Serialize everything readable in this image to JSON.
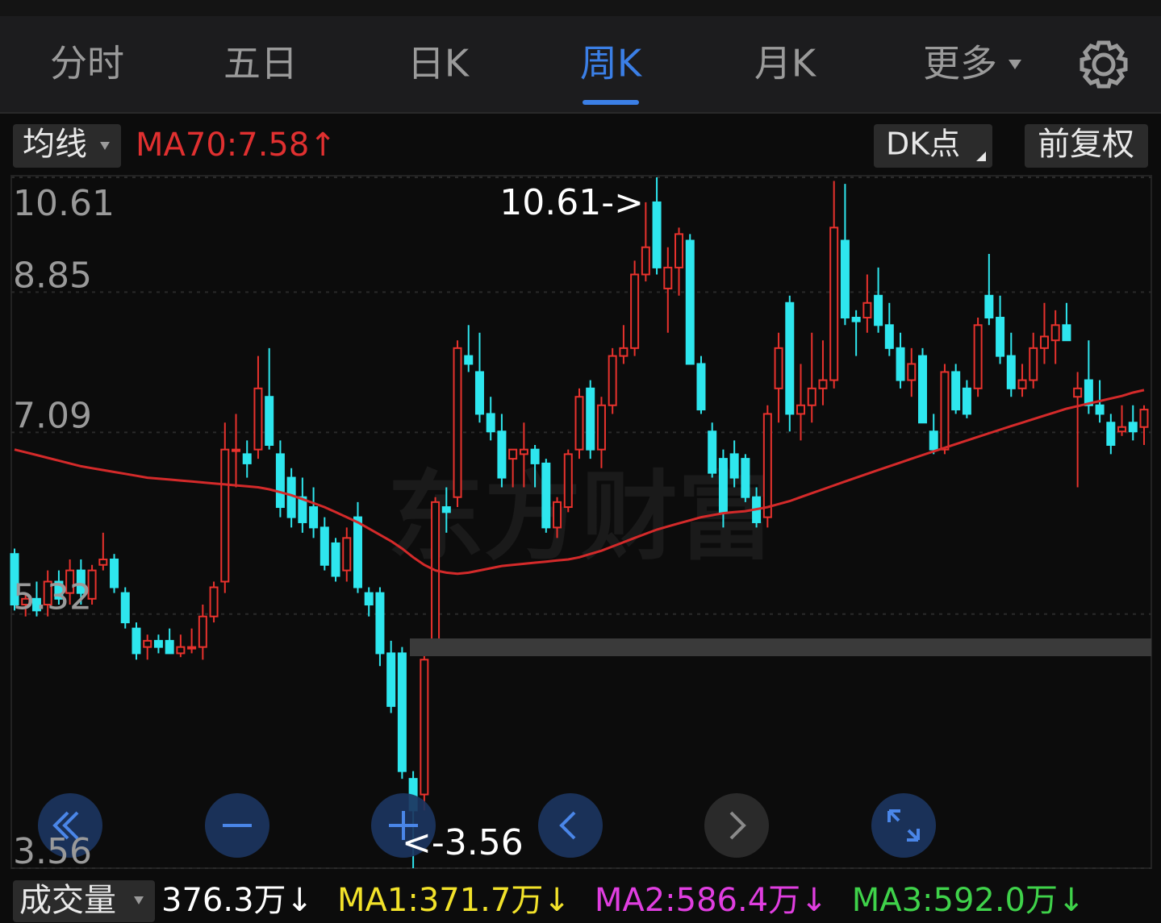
{
  "tabs": [
    "分时",
    "五日",
    "日K",
    "周K",
    "月K",
    "更多"
  ],
  "active_tab": 3,
  "toolbar": {
    "ma_button": "均线",
    "ma_text": "MA70:7.58↑",
    "dk_button": "DK点",
    "adjust_button": "前复权"
  },
  "chart_data": {
    "type": "candlestick",
    "watermark": "东方财富",
    "log_scale": true,
    "grid": true,
    "up_color": "#e8322d",
    "down_color": "#2ee6ee",
    "ylim": [
      3.56,
      10.61
    ],
    "yticks": [
      10.61,
      8.85,
      7.09,
      5.32,
      3.56
    ],
    "annotations": [
      {
        "text": "10.61->",
        "value": 10.61
      },
      {
        "text": "<-3.56",
        "value": 3.56
      }
    ],
    "candles": [
      [
        5.85,
        5.9,
        5.35,
        5.4
      ],
      [
        5.4,
        5.5,
        5.3,
        5.45
      ],
      [
        5.45,
        5.6,
        5.3,
        5.35
      ],
      [
        5.4,
        5.7,
        5.3,
        5.6
      ],
      [
        5.6,
        5.7,
        5.4,
        5.45
      ],
      [
        5.5,
        5.8,
        5.4,
        5.7
      ],
      [
        5.7,
        5.8,
        5.4,
        5.5
      ],
      [
        5.45,
        5.75,
        5.4,
        5.7
      ],
      [
        5.75,
        6.05,
        5.7,
        5.8
      ],
      [
        5.8,
        5.85,
        5.5,
        5.55
      ],
      [
        5.5,
        5.55,
        5.2,
        5.25
      ],
      [
        5.2,
        5.25,
        4.95,
        5.0
      ],
      [
        5.05,
        5.15,
        4.95,
        5.1
      ],
      [
        5.1,
        5.15,
        5.0,
        5.05
      ],
      [
        5.1,
        5.2,
        5.0,
        5.0
      ],
      [
        5.0,
        5.15,
        4.97,
        5.05
      ],
      [
        5.05,
        5.2,
        5.0,
        5.05
      ],
      [
        5.05,
        5.4,
        4.95,
        5.3
      ],
      [
        5.3,
        5.6,
        5.25,
        5.55
      ],
      [
        5.6,
        7.2,
        5.5,
        6.9
      ],
      [
        6.9,
        7.3,
        6.5,
        6.9
      ],
      [
        6.85,
        7.0,
        6.6,
        6.75
      ],
      [
        6.9,
        8.0,
        6.8,
        7.6
      ],
      [
        7.5,
        8.1,
        6.9,
        6.95
      ],
      [
        6.85,
        7.0,
        6.2,
        6.3
      ],
      [
        6.6,
        6.7,
        6.1,
        6.2
      ],
      [
        6.4,
        6.6,
        6.05,
        6.15
      ],
      [
        6.3,
        6.5,
        6.0,
        6.1
      ],
      [
        6.1,
        6.2,
        5.7,
        5.75
      ],
      [
        5.95,
        6.0,
        5.6,
        5.65
      ],
      [
        5.7,
        6.1,
        5.6,
        6.0
      ],
      [
        6.2,
        6.35,
        5.5,
        5.55
      ],
      [
        5.5,
        5.55,
        5.3,
        5.4
      ],
      [
        5.5,
        5.55,
        4.9,
        5.0
      ],
      [
        5.0,
        5.1,
        4.55,
        4.6
      ],
      [
        5.0,
        5.05,
        4.1,
        4.15
      ],
      [
        4.1,
        4.15,
        3.56,
        3.9
      ],
      [
        4.0,
        5.0,
        3.9,
        4.95
      ],
      [
        5.05,
        6.4,
        5.0,
        6.35
      ],
      [
        6.3,
        6.5,
        6.05,
        6.25
      ],
      [
        6.4,
        8.2,
        6.3,
        8.1
      ],
      [
        8.0,
        8.4,
        7.8,
        7.9
      ],
      [
        7.8,
        8.3,
        7.2,
        7.3
      ],
      [
        7.3,
        7.5,
        7.0,
        7.1
      ],
      [
        7.1,
        7.3,
        6.5,
        6.6
      ],
      [
        6.8,
        6.9,
        6.5,
        6.9
      ],
      [
        6.85,
        7.2,
        6.5,
        6.9
      ],
      [
        6.9,
        6.95,
        6.5,
        6.75
      ],
      [
        6.75,
        6.8,
        6.05,
        6.1
      ],
      [
        6.1,
        6.4,
        6.0,
        6.35
      ],
      [
        6.3,
        6.9,
        6.25,
        6.85
      ],
      [
        6.9,
        7.6,
        6.8,
        7.5
      ],
      [
        7.6,
        7.7,
        6.8,
        6.9
      ],
      [
        6.9,
        7.5,
        6.7,
        7.4
      ],
      [
        7.4,
        8.1,
        7.3,
        8.0
      ],
      [
        8.0,
        8.4,
        7.9,
        8.1
      ],
      [
        8.1,
        9.3,
        8.0,
        9.1
      ],
      [
        9.1,
        10.2,
        9.0,
        9.5
      ],
      [
        10.2,
        10.61,
        9.1,
        9.2
      ],
      [
        8.9,
        9.5,
        8.3,
        9.2
      ],
      [
        9.2,
        9.8,
        8.8,
        9.7
      ],
      [
        9.6,
        9.7,
        7.9,
        7.9
      ],
      [
        7.9,
        8.0,
        7.3,
        7.35
      ],
      [
        7.1,
        7.2,
        6.6,
        6.65
      ],
      [
        6.8,
        6.9,
        6.1,
        6.25
      ],
      [
        6.85,
        7.0,
        6.5,
        6.6
      ],
      [
        6.8,
        6.85,
        6.35,
        6.4
      ],
      [
        6.4,
        6.5,
        6.1,
        6.15
      ],
      [
        6.2,
        7.4,
        6.1,
        7.3
      ],
      [
        7.6,
        8.3,
        7.2,
        8.1
      ],
      [
        8.7,
        8.8,
        7.1,
        7.3
      ],
      [
        7.3,
        7.9,
        7.0,
        7.4
      ],
      [
        7.4,
        8.3,
        7.2,
        7.6
      ],
      [
        7.6,
        8.2,
        7.4,
        7.7
      ],
      [
        7.7,
        10.55,
        7.6,
        9.8
      ],
      [
        9.6,
        10.5,
        8.4,
        8.5
      ],
      [
        8.5,
        8.6,
        8.0,
        8.45
      ],
      [
        8.5,
        9.1,
        8.3,
        8.7
      ],
      [
        8.8,
        9.2,
        8.3,
        8.4
      ],
      [
        8.4,
        8.7,
        8.0,
        8.1
      ],
      [
        8.1,
        8.3,
        7.6,
        7.7
      ],
      [
        7.7,
        8.1,
        7.5,
        7.9
      ],
      [
        8.0,
        8.1,
        7.2,
        7.2
      ],
      [
        7.1,
        7.3,
        6.85,
        6.9
      ],
      [
        6.9,
        7.9,
        6.85,
        7.8
      ],
      [
        7.8,
        7.9,
        7.3,
        7.35
      ],
      [
        7.6,
        7.7,
        7.25,
        7.3
      ],
      [
        7.6,
        8.5,
        7.5,
        8.4
      ],
      [
        8.8,
        9.4,
        8.4,
        8.5
      ],
      [
        8.5,
        8.8,
        7.9,
        8.0
      ],
      [
        8.0,
        8.3,
        7.5,
        7.6
      ],
      [
        7.6,
        7.9,
        7.5,
        7.7
      ],
      [
        7.7,
        8.3,
        7.6,
        8.1
      ],
      [
        8.1,
        8.7,
        7.9,
        8.25
      ],
      [
        8.2,
        8.6,
        7.9,
        8.4
      ],
      [
        8.4,
        8.7,
        8.2,
        8.2
      ],
      [
        7.5,
        7.8,
        6.5,
        7.6
      ],
      [
        7.7,
        8.2,
        7.3,
        7.4
      ],
      [
        7.4,
        7.7,
        7.2,
        7.3
      ],
      [
        7.2,
        7.3,
        6.85,
        6.95
      ],
      [
        7.1,
        7.4,
        7.05,
        7.15
      ],
      [
        7.2,
        7.4,
        7.0,
        7.1
      ],
      [
        7.15,
        7.4,
        6.95,
        7.35
      ]
    ],
    "ma": {
      "name": "MA70",
      "color": "#d42a2a",
      "values": [
        6.9,
        6.87,
        6.84,
        6.81,
        6.78,
        6.75,
        6.72,
        6.7,
        6.68,
        6.66,
        6.64,
        6.62,
        6.6,
        6.59,
        6.58,
        6.57,
        6.56,
        6.55,
        6.54,
        6.53,
        6.52,
        6.51,
        6.5,
        6.48,
        6.45,
        6.42,
        6.38,
        6.34,
        6.3,
        6.25,
        6.2,
        6.15,
        6.09,
        6.03,
        5.97,
        5.9,
        5.82,
        5.75,
        5.7,
        5.68,
        5.67,
        5.68,
        5.7,
        5.72,
        5.74,
        5.75,
        5.76,
        5.77,
        5.78,
        5.79,
        5.8,
        5.82,
        5.85,
        5.88,
        5.92,
        5.96,
        6.0,
        6.04,
        6.08,
        6.11,
        6.14,
        6.17,
        6.2,
        6.22,
        6.24,
        6.25,
        6.26,
        6.28,
        6.3,
        6.33,
        6.36,
        6.4,
        6.44,
        6.48,
        6.52,
        6.56,
        6.6,
        6.64,
        6.68,
        6.72,
        6.76,
        6.8,
        6.84,
        6.88,
        6.92,
        6.96,
        7.0,
        7.04,
        7.08,
        7.12,
        7.16,
        7.2,
        7.24,
        7.28,
        7.32,
        7.36,
        7.39,
        7.42,
        7.45,
        7.48,
        7.51,
        7.55,
        7.58
      ]
    }
  },
  "volume_bar": {
    "button": "成交量",
    "items": [
      {
        "text": "376.3万↓",
        "color": "#ffffff"
      },
      {
        "text": "MA1:371.7万↓",
        "color": "#f2e22a"
      },
      {
        "text": "MA2:586.4万↓",
        "color": "#e03ee0"
      },
      {
        "text": "MA3:592.0万↓",
        "color": "#3fd24a"
      }
    ]
  }
}
